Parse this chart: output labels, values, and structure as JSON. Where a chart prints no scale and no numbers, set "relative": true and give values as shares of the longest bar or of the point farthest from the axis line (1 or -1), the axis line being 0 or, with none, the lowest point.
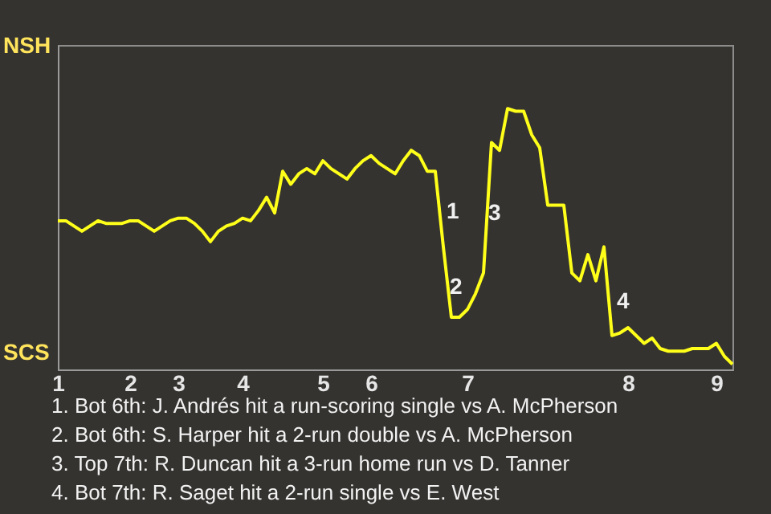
{
  "chart_data": {
    "type": "line",
    "relative": true,
    "categories": [
      "1",
      null,
      null,
      null,
      null,
      null,
      null,
      null,
      null,
      "2",
      null,
      null,
      null,
      null,
      null,
      "3",
      null,
      null,
      null,
      null,
      null,
      null,
      null,
      "4",
      null,
      null,
      null,
      null,
      null,
      null,
      null,
      null,
      null,
      "5",
      null,
      null,
      null,
      null,
      null,
      "6",
      null,
      null,
      null,
      null,
      null,
      null,
      null,
      null,
      null,
      null,
      null,
      "7",
      null,
      null,
      null,
      null,
      null,
      null,
      null,
      null,
      null,
      null,
      null,
      null,
      null,
      null,
      null,
      null,
      null,
      null,
      null,
      "8",
      null,
      null,
      null,
      null,
      null,
      null,
      null,
      null,
      null,
      null,
      "9",
      null,
      null
    ],
    "series": [
      {
        "color": "#ffff1a",
        "values": [
          0.57,
          0.57,
          0.55,
          0.53,
          0.55,
          0.57,
          0.56,
          0.56,
          0.56,
          0.57,
          0.57,
          0.55,
          0.53,
          0.55,
          0.57,
          0.58,
          0.58,
          0.56,
          0.53,
          0.49,
          0.53,
          0.55,
          0.56,
          0.58,
          0.57,
          0.61,
          0.66,
          0.6,
          0.76,
          0.71,
          0.75,
          0.77,
          0.75,
          0.8,
          0.77,
          0.75,
          0.73,
          0.77,
          0.8,
          0.82,
          0.79,
          0.77,
          0.75,
          0.8,
          0.84,
          0.82,
          0.76,
          0.76,
          0.47,
          0.2,
          0.2,
          0.23,
          0.29,
          0.37,
          0.87,
          0.84,
          1,
          0.99,
          0.99,
          0.9,
          0.85,
          0.63,
          0.63,
          0.63,
          0.37,
          0.34,
          0.44,
          0.34,
          0.47,
          0.13,
          0.14,
          0.16,
          0.13,
          0.1,
          0.12,
          0.08,
          0.07,
          0.07,
          0.07,
          0.08,
          0.08,
          0.08,
          0.1,
          0.05,
          0.02
        ]
      }
    ],
    "annotations": [
      "NSH",
      "SCS",
      "1",
      "2",
      "3",
      "4",
      "1. Bot 6th: J. Andrés hit a run-scoring single vs A. McPherson",
      "2. Bot 6th: S. Harper hit a 2-run double vs A. McPherson",
      "3. Top 7th: R. Duncan hit a 3-run home run vs D. Tanner",
      "4. Bot 7th: R. Saget hit a 2-run single vs E. West"
    ]
  }
}
